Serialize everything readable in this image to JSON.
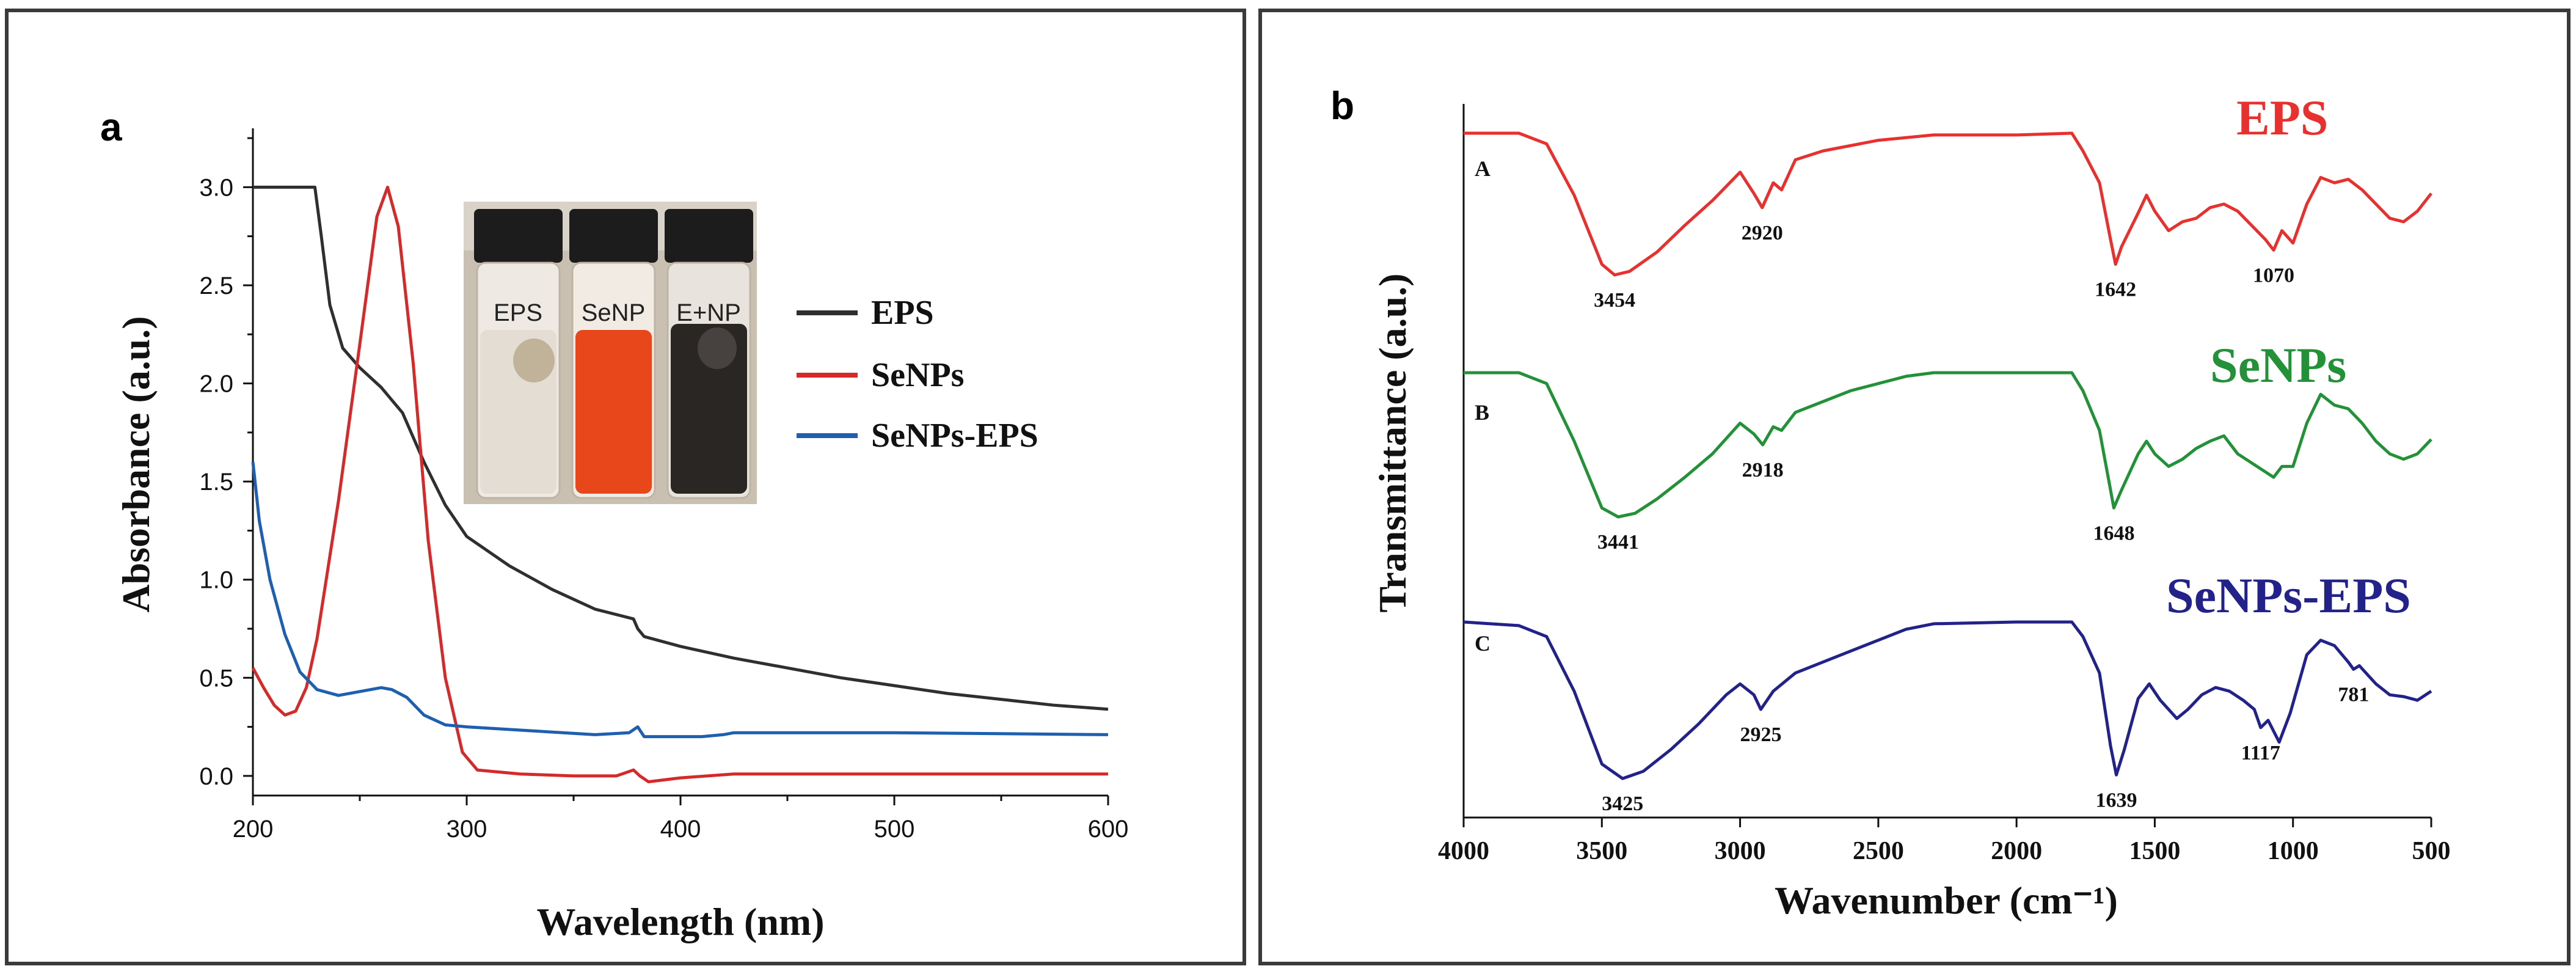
{
  "chart_data": [
    {
      "panel_label": "a",
      "type": "line",
      "title": "",
      "xlabel": "Wavelength (nm)",
      "ylabel": "Absorbance (a.u.)",
      "xlim": [
        200,
        600
      ],
      "ylim": [
        -0.1,
        3.3
      ],
      "x_ticks": [
        "200",
        "300",
        "400",
        "500",
        "600"
      ],
      "y_ticks": [
        "0.0",
        "0.5",
        "1.0",
        "1.5",
        "2.0",
        "2.5",
        "3.0"
      ],
      "legend": [
        "EPS",
        "SeNPs",
        "SeNPs-EPS"
      ],
      "inset": {
        "labels": [
          "EPS",
          "SeNP",
          "E+NP"
        ],
        "liquid_colors": [
          "#e4ddd3",
          "#e8471c",
          "#2a2624"
        ]
      },
      "series": [
        {
          "name": "EPS",
          "color": "#2f2f2f",
          "points": [
            [
              200,
              3.0
            ],
            [
              229,
              3.0
            ],
            [
              232,
              2.75
            ],
            [
              236,
              2.4
            ],
            [
              242,
              2.18
            ],
            [
              250,
              2.08
            ],
            [
              260,
              1.98
            ],
            [
              270,
              1.85
            ],
            [
              280,
              1.6
            ],
            [
              290,
              1.38
            ],
            [
              300,
              1.22
            ],
            [
              320,
              1.07
            ],
            [
              340,
              0.95
            ],
            [
              360,
              0.85
            ],
            [
              378,
              0.8
            ],
            [
              380,
              0.75
            ],
            [
              383,
              0.71
            ],
            [
              400,
              0.66
            ],
            [
              425,
              0.6
            ],
            [
              450,
              0.55
            ],
            [
              475,
              0.5
            ],
            [
              500,
              0.46
            ],
            [
              525,
              0.42
            ],
            [
              550,
              0.39
            ],
            [
              575,
              0.36
            ],
            [
              600,
              0.34
            ]
          ]
        },
        {
          "name": "SeNPs",
          "color": "#d42a2a",
          "points": [
            [
              200,
              0.55
            ],
            [
              205,
              0.45
            ],
            [
              210,
              0.36
            ],
            [
              215,
              0.31
            ],
            [
              220,
              0.33
            ],
            [
              225,
              0.45
            ],
            [
              230,
              0.7
            ],
            [
              240,
              1.4
            ],
            [
              250,
              2.2
            ],
            [
              258,
              2.85
            ],
            [
              263,
              3.0
            ],
            [
              268,
              2.8
            ],
            [
              275,
              2.1
            ],
            [
              282,
              1.2
            ],
            [
              290,
              0.5
            ],
            [
              298,
              0.12
            ],
            [
              305,
              0.03
            ],
            [
              325,
              0.01
            ],
            [
              350,
              0.0
            ],
            [
              370,
              0.0
            ],
            [
              378,
              0.03
            ],
            [
              381,
              0.0
            ],
            [
              385,
              -0.03
            ],
            [
              400,
              -0.01
            ],
            [
              425,
              0.01
            ],
            [
              500,
              0.01
            ],
            [
              600,
              0.01
            ]
          ]
        },
        {
          "name": "SeNPs-EPS",
          "color": "#1e5fb0",
          "points": [
            [
              200,
              1.6
            ],
            [
              203,
              1.3
            ],
            [
              208,
              1.0
            ],
            [
              215,
              0.72
            ],
            [
              222,
              0.53
            ],
            [
              230,
              0.44
            ],
            [
              240,
              0.41
            ],
            [
              250,
              0.43
            ],
            [
              260,
              0.45
            ],
            [
              265,
              0.44
            ],
            [
              272,
              0.4
            ],
            [
              280,
              0.31
            ],
            [
              290,
              0.26
            ],
            [
              300,
              0.25
            ],
            [
              330,
              0.23
            ],
            [
              360,
              0.21
            ],
            [
              376,
              0.22
            ],
            [
              380,
              0.25
            ],
            [
              383,
              0.2
            ],
            [
              400,
              0.2
            ],
            [
              410,
              0.2
            ],
            [
              420,
              0.21
            ],
            [
              425,
              0.22
            ],
            [
              500,
              0.22
            ],
            [
              600,
              0.21
            ]
          ]
        }
      ]
    },
    {
      "panel_label": "b",
      "type": "line",
      "title": "",
      "xlabel": "Wavenumber (cm⁻¹)",
      "ylabel": "Transmittance (a.u.)",
      "xlim": [
        4000,
        500
      ],
      "x_ticks": [
        "4000",
        "3500",
        "3000",
        "2500",
        "2000",
        "1500",
        "1000",
        "500"
      ],
      "series": [
        {
          "name": "EPS",
          "trace_letter": "A",
          "color": "#e8312f",
          "peak_labels": [
            {
              "x": 3454,
              "text": "3454"
            },
            {
              "x": 2920,
              "text": "2920"
            },
            {
              "x": 1642,
              "text": "1642"
            },
            {
              "x": 1070,
              "text": "1070"
            }
          ],
          "points": [
            [
              4000,
              1.0
            ],
            [
              3800,
              1.0
            ],
            [
              3700,
              0.94
            ],
            [
              3600,
              0.65
            ],
            [
              3500,
              0.26
            ],
            [
              3454,
              0.2
            ],
            [
              3400,
              0.22
            ],
            [
              3300,
              0.33
            ],
            [
              3200,
              0.48
            ],
            [
              3100,
              0.62
            ],
            [
              3000,
              0.78
            ],
            [
              2950,
              0.66
            ],
            [
              2920,
              0.58
            ],
            [
              2880,
              0.72
            ],
            [
              2850,
              0.68
            ],
            [
              2800,
              0.85
            ],
            [
              2700,
              0.9
            ],
            [
              2500,
              0.96
            ],
            [
              2300,
              0.99
            ],
            [
              2000,
              0.99
            ],
            [
              1800,
              1.0
            ],
            [
              1760,
              0.9
            ],
            [
              1700,
              0.72
            ],
            [
              1660,
              0.4
            ],
            [
              1642,
              0.26
            ],
            [
              1620,
              0.36
            ],
            [
              1560,
              0.55
            ],
            [
              1530,
              0.65
            ],
            [
              1500,
              0.56
            ],
            [
              1450,
              0.45
            ],
            [
              1400,
              0.5
            ],
            [
              1350,
              0.52
            ],
            [
              1300,
              0.58
            ],
            [
              1250,
              0.6
            ],
            [
              1200,
              0.56
            ],
            [
              1150,
              0.48
            ],
            [
              1100,
              0.4
            ],
            [
              1070,
              0.34
            ],
            [
              1040,
              0.45
            ],
            [
              1000,
              0.38
            ],
            [
              950,
              0.6
            ],
            [
              900,
              0.75
            ],
            [
              850,
              0.72
            ],
            [
              800,
              0.74
            ],
            [
              750,
              0.68
            ],
            [
              700,
              0.6
            ],
            [
              650,
              0.52
            ],
            [
              600,
              0.5
            ],
            [
              550,
              0.56
            ],
            [
              500,
              0.66
            ]
          ]
        },
        {
          "name": "SeNPs",
          "trace_letter": "B",
          "color": "#229137",
          "peak_labels": [
            {
              "x": 3441,
              "text": "3441"
            },
            {
              "x": 2918,
              "text": "2918"
            },
            {
              "x": 1648,
              "text": "1648"
            }
          ],
          "points": [
            [
              4000,
              1.0
            ],
            [
              3800,
              1.0
            ],
            [
              3700,
              0.94
            ],
            [
              3600,
              0.62
            ],
            [
              3500,
              0.25
            ],
            [
              3441,
              0.2
            ],
            [
              3380,
              0.22
            ],
            [
              3300,
              0.3
            ],
            [
              3200,
              0.42
            ],
            [
              3100,
              0.55
            ],
            [
              3000,
              0.72
            ],
            [
              2950,
              0.66
            ],
            [
              2918,
              0.6
            ],
            [
              2880,
              0.7
            ],
            [
              2850,
              0.68
            ],
            [
              2800,
              0.78
            ],
            [
              2600,
              0.9
            ],
            [
              2400,
              0.98
            ],
            [
              2300,
              1.0
            ],
            [
              2000,
              1.0
            ],
            [
              1800,
              1.0
            ],
            [
              1760,
              0.9
            ],
            [
              1700,
              0.68
            ],
            [
              1660,
              0.35
            ],
            [
              1648,
              0.25
            ],
            [
              1620,
              0.35
            ],
            [
              1560,
              0.55
            ],
            [
              1530,
              0.62
            ],
            [
              1500,
              0.55
            ],
            [
              1450,
              0.48
            ],
            [
              1400,
              0.52
            ],
            [
              1350,
              0.58
            ],
            [
              1300,
              0.62
            ],
            [
              1250,
              0.65
            ],
            [
              1200,
              0.55
            ],
            [
              1150,
              0.5
            ],
            [
              1100,
              0.45
            ],
            [
              1070,
              0.42
            ],
            [
              1040,
              0.48
            ],
            [
              1000,
              0.48
            ],
            [
              950,
              0.72
            ],
            [
              900,
              0.88
            ],
            [
              850,
              0.82
            ],
            [
              800,
              0.8
            ],
            [
              750,
              0.72
            ],
            [
              700,
              0.62
            ],
            [
              650,
              0.55
            ],
            [
              600,
              0.52
            ],
            [
              550,
              0.55
            ],
            [
              500,
              0.63
            ]
          ]
        },
        {
          "name": "SeNPs-EPS",
          "trace_letter": "C",
          "color": "#22228a",
          "peak_labels": [
            {
              "x": 3425,
              "text": "3425"
            },
            {
              "x": 2925,
              "text": "2925"
            },
            {
              "x": 1639,
              "text": "1639"
            },
            {
              "x": 1117,
              "text": "1117"
            },
            {
              "x": 781,
              "text": "781"
            }
          ],
          "points": [
            [
              4000,
              0.98
            ],
            [
              3800,
              0.96
            ],
            [
              3700,
              0.9
            ],
            [
              3600,
              0.6
            ],
            [
              3500,
              0.2
            ],
            [
              3425,
              0.12
            ],
            [
              3350,
              0.16
            ],
            [
              3250,
              0.28
            ],
            [
              3150,
              0.42
            ],
            [
              3050,
              0.58
            ],
            [
              3000,
              0.64
            ],
            [
              2950,
              0.58
            ],
            [
              2925,
              0.5
            ],
            [
              2880,
              0.6
            ],
            [
              2800,
              0.7
            ],
            [
              2600,
              0.82
            ],
            [
              2400,
              0.94
            ],
            [
              2300,
              0.97
            ],
            [
              2000,
              0.98
            ],
            [
              1800,
              0.98
            ],
            [
              1760,
              0.9
            ],
            [
              1700,
              0.7
            ],
            [
              1660,
              0.3
            ],
            [
              1639,
              0.14
            ],
            [
              1610,
              0.28
            ],
            [
              1560,
              0.56
            ],
            [
              1520,
              0.64
            ],
            [
              1480,
              0.55
            ],
            [
              1420,
              0.45
            ],
            [
              1380,
              0.5
            ],
            [
              1330,
              0.58
            ],
            [
              1280,
              0.62
            ],
            [
              1230,
              0.6
            ],
            [
              1180,
              0.55
            ],
            [
              1140,
              0.5
            ],
            [
              1117,
              0.4
            ],
            [
              1090,
              0.44
            ],
            [
              1050,
              0.32
            ],
            [
              1010,
              0.48
            ],
            [
              950,
              0.8
            ],
            [
              900,
              0.88
            ],
            [
              850,
              0.85
            ],
            [
              800,
              0.76
            ],
            [
              781,
              0.72
            ],
            [
              760,
              0.74
            ],
            [
              700,
              0.64
            ],
            [
              650,
              0.58
            ],
            [
              600,
              0.57
            ],
            [
              550,
              0.55
            ],
            [
              500,
              0.6
            ]
          ]
        }
      ]
    }
  ]
}
